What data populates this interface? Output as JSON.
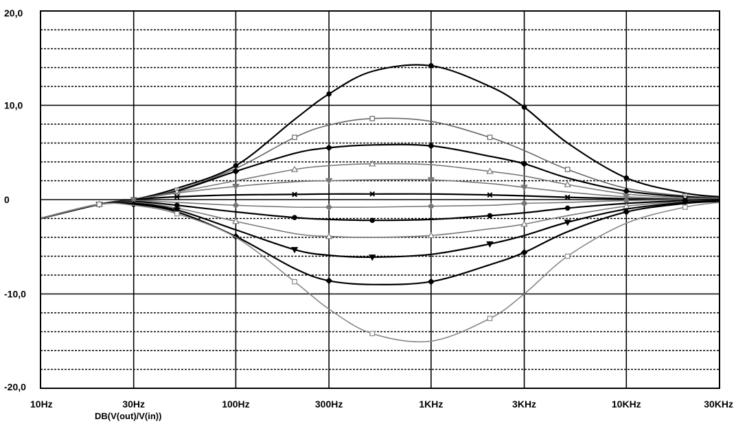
{
  "chart_data": {
    "type": "line",
    "x_scale": "log",
    "xlim": [
      10,
      30000
    ],
    "ylim": [
      -20,
      20
    ],
    "x_ticks": [
      10,
      30,
      100,
      300,
      1000,
      3000,
      10000,
      30000
    ],
    "x_tick_labels": [
      "10Hz",
      "30Hz",
      "100Hz",
      "300Hz",
      "1KHz",
      "3KHz",
      "10KHz",
      "30KHz"
    ],
    "y_ticks": [
      20,
      10,
      0,
      -10,
      -20
    ],
    "y_tick_labels": [
      "20,0",
      "10,0",
      "0",
      "-10,0",
      "-20,0"
    ],
    "minor_y_gridlines": [
      18,
      16,
      14,
      12,
      8,
      6,
      4,
      2,
      -2,
      -4,
      -6,
      -8,
      -12,
      -14,
      -16,
      -18
    ],
    "trace_label": "DB(V(out)/V(in))",
    "grid": true,
    "x": [
      10,
      20,
      30,
      50,
      100,
      200,
      300,
      500,
      1000,
      2000,
      3000,
      5000,
      10000,
      20000,
      30000
    ],
    "series": [
      {
        "color": "#000000",
        "marker": "circle",
        "values": [
          -2.0,
          -0.5,
          0.0,
          1.2,
          3.6,
          8.5,
          11.2,
          13.6,
          14.2,
          12.0,
          9.8,
          6.0,
          2.3,
          0.7,
          0.3
        ]
      },
      {
        "color": "#666666",
        "marker": "square",
        "values": [
          -2.0,
          -0.5,
          0.0,
          1.0,
          3.3,
          6.6,
          7.9,
          8.6,
          8.3,
          6.6,
          5.2,
          3.2,
          1.2,
          0.4,
          0.2
        ]
      },
      {
        "color": "#000000",
        "marker": "diamond",
        "values": [
          -2.0,
          -0.5,
          0.0,
          0.9,
          3.0,
          4.9,
          5.5,
          5.8,
          5.7,
          4.6,
          3.8,
          2.3,
          0.9,
          0.3,
          0.1
        ]
      },
      {
        "color": "#777777",
        "marker": "triangle",
        "values": [
          -2.0,
          -0.5,
          0.0,
          0.8,
          2.0,
          3.2,
          3.6,
          3.8,
          3.7,
          3.0,
          2.5,
          1.6,
          0.6,
          0.2,
          0.1
        ]
      },
      {
        "color": "#777777",
        "marker": "triangle-down",
        "values": [
          -2.0,
          -0.5,
          0.0,
          0.7,
          1.4,
          1.9,
          2.0,
          2.1,
          2.1,
          1.7,
          1.3,
          0.8,
          0.3,
          0.1,
          0.0
        ]
      },
      {
        "color": "#000000",
        "marker": "cross",
        "values": [
          -2.0,
          -0.5,
          0.0,
          0.3,
          0.5,
          0.55,
          0.6,
          0.6,
          0.6,
          0.5,
          0.4,
          0.25,
          0.1,
          0.0,
          0.0
        ]
      },
      {
        "color": "#777777",
        "marker": "diamond",
        "values": [
          -2.0,
          -0.5,
          -0.1,
          -0.3,
          -0.6,
          -0.8,
          -0.8,
          -0.8,
          -0.7,
          -0.6,
          -0.4,
          -0.3,
          -0.1,
          0.0,
          0.0
        ]
      },
      {
        "color": "#000000",
        "marker": "circle",
        "values": [
          -2.0,
          -0.5,
          -0.2,
          -0.6,
          -1.3,
          -1.9,
          -2.1,
          -2.2,
          -2.1,
          -1.7,
          -1.4,
          -0.9,
          -0.4,
          -0.1,
          0.0
        ]
      },
      {
        "color": "#777777",
        "marker": "triangle",
        "values": [
          -2.0,
          -0.5,
          -0.3,
          -0.9,
          -2.3,
          -3.6,
          -3.9,
          -4.0,
          -3.8,
          -3.1,
          -2.6,
          -1.7,
          -0.7,
          -0.2,
          -0.1
        ]
      },
      {
        "color": "#000000",
        "marker": "triangle-down",
        "values": [
          -2.0,
          -0.5,
          -0.4,
          -1.1,
          -3.2,
          -5.3,
          -5.9,
          -6.1,
          -5.8,
          -4.7,
          -3.8,
          -2.4,
          -1.0,
          -0.3,
          -0.1
        ]
      },
      {
        "color": "#000000",
        "marker": "diamond",
        "values": [
          -2.0,
          -0.5,
          -0.5,
          -1.3,
          -3.9,
          -7.3,
          -8.6,
          -9.0,
          -8.7,
          -6.9,
          -5.6,
          -3.4,
          -1.3,
          -0.4,
          -0.2
        ]
      },
      {
        "color": "#888888",
        "marker": "square",
        "values": [
          -2.0,
          -0.5,
          -0.6,
          -1.5,
          -4.0,
          -8.7,
          -11.6,
          -14.2,
          -15.0,
          -12.6,
          -10.0,
          -6.0,
          -2.5,
          -0.8,
          -0.3
        ]
      }
    ]
  }
}
